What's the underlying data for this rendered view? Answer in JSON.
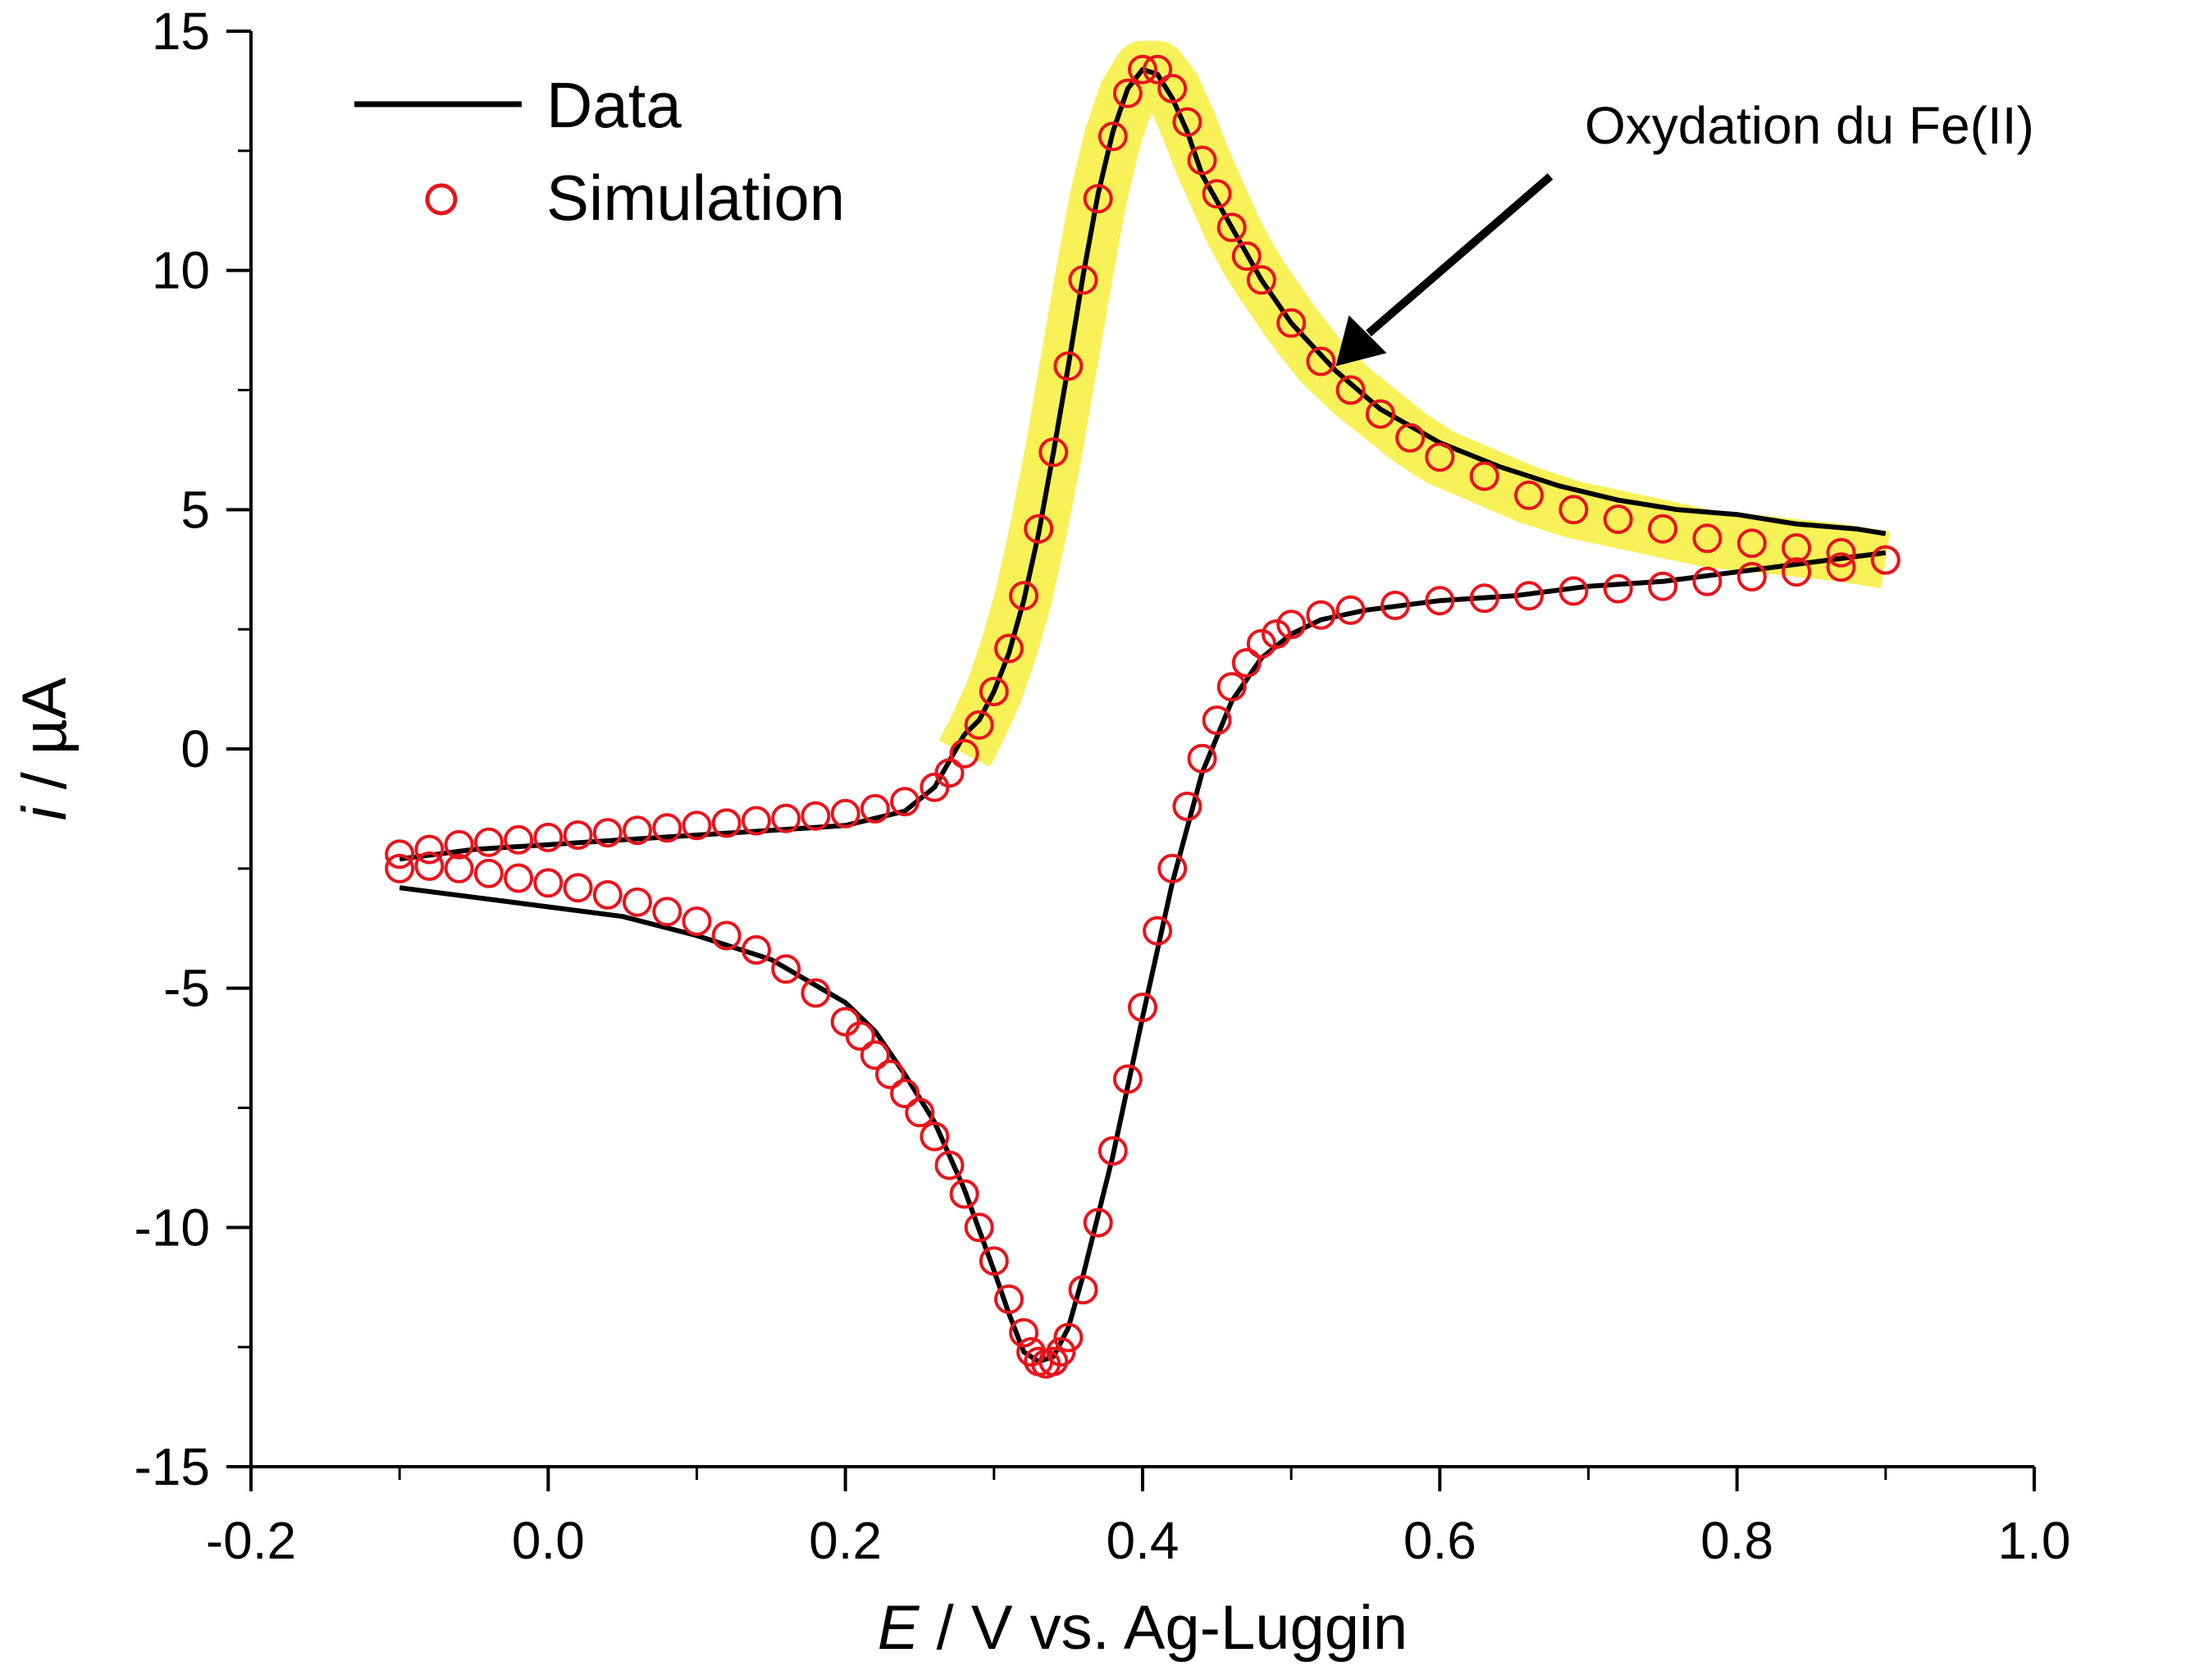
{
  "chart_data": {
    "type": "scatter",
    "title": "",
    "xlabel_italic": "E",
    "xlabel_rest": " / V vs. Ag-Luggin",
    "ylabel_italic": "i",
    "ylabel_rest": " / µA",
    "xlim": [
      -0.2,
      1.0
    ],
    "ylim": [
      -15,
      15
    ],
    "x_ticks": [
      -0.2,
      0.0,
      0.2,
      0.4,
      0.6,
      0.8,
      1.0
    ],
    "x_tick_labels": [
      "-0.2",
      "0.0",
      "0.2",
      "0.4",
      "0.6",
      "0.8",
      "1.0"
    ],
    "y_ticks": [
      -15,
      -10,
      -5,
      0,
      5,
      10,
      15
    ],
    "y_tick_labels": [
      "-15",
      "-10",
      "-5",
      "0",
      "5",
      "10",
      "15"
    ],
    "grid": false,
    "legend_position": "top-left",
    "legend": [
      {
        "label": "Data",
        "style": "line",
        "color": "#000000"
      },
      {
        "label": "Simulation",
        "style": "open-circle",
        "color": "#e8141c"
      }
    ],
    "highlight_color": "#f7ee3a",
    "annotation": {
      "text": "Oxydation du Fe(II)",
      "arrow_target": [
        0.53,
        8.0
      ]
    },
    "series": [
      {
        "name": "Data",
        "style": "line",
        "color": "#000000",
        "forward_x": [
          0.28,
          0.29,
          0.3,
          0.31,
          0.32,
          0.33,
          0.34,
          0.35,
          0.36,
          0.37,
          0.38,
          0.39,
          0.4,
          0.41,
          0.42,
          0.43,
          0.44,
          0.46,
          0.48,
          0.5,
          0.53,
          0.56,
          0.6,
          0.64,
          0.68,
          0.72,
          0.76,
          0.8,
          0.84,
          0.88,
          0.9
        ],
        "forward_y": [
          0.3,
          0.6,
          1.2,
          2.0,
          3.1,
          4.5,
          6.2,
          8.0,
          9.9,
          11.6,
          12.9,
          13.8,
          14.2,
          14.1,
          13.6,
          12.9,
          12.0,
          10.9,
          9.8,
          8.9,
          7.9,
          7.1,
          6.4,
          5.9,
          5.5,
          5.2,
          5.0,
          4.9,
          4.7,
          4.6,
          4.5
        ],
        "reverse_x": [
          0.9,
          0.85,
          0.8,
          0.75,
          0.7,
          0.65,
          0.6,
          0.55,
          0.52,
          0.5,
          0.48,
          0.46,
          0.44,
          0.42,
          0.4,
          0.38,
          0.36,
          0.35,
          0.34,
          0.33,
          0.32,
          0.31,
          0.3,
          0.28,
          0.26,
          0.24,
          0.22,
          0.2,
          0.15,
          0.1,
          0.05,
          0.0,
          -0.05,
          -0.1
        ],
        "reverse_y": [
          4.1,
          3.9,
          3.7,
          3.5,
          3.4,
          3.2,
          3.1,
          2.9,
          2.7,
          2.4,
          1.9,
          1.0,
          -0.5,
          -2.8,
          -5.6,
          -8.5,
          -11.0,
          -12.1,
          -12.7,
          -12.8,
          -12.6,
          -11.8,
          -10.9,
          -9.2,
          -7.8,
          -6.8,
          -5.9,
          -5.3,
          -4.4,
          -3.9,
          -3.5,
          -3.3,
          -3.1,
          -2.9
        ],
        "start_x": [
          -0.1,
          -0.05,
          0.0,
          0.05,
          0.1,
          0.15,
          0.2,
          0.24,
          0.26,
          0.28
        ],
        "start_y": [
          -2.3,
          -2.1,
          -2.0,
          -1.9,
          -1.8,
          -1.7,
          -1.6,
          -1.3,
          -0.8,
          0.3
        ]
      },
      {
        "name": "Simulation",
        "style": "open-circle",
        "color": "#e8141c",
        "forward_x": [
          -0.1,
          -0.08,
          -0.06,
          -0.04,
          -0.02,
          0.0,
          0.02,
          0.04,
          0.06,
          0.08,
          0.1,
          0.12,
          0.14,
          0.16,
          0.18,
          0.2,
          0.22,
          0.24,
          0.26,
          0.27,
          0.28,
          0.29,
          0.3,
          0.31,
          0.32,
          0.33,
          0.34,
          0.35,
          0.36,
          0.37,
          0.38,
          0.39,
          0.4,
          0.41,
          0.42,
          0.43,
          0.44,
          0.45,
          0.46,
          0.47,
          0.48,
          0.5,
          0.52,
          0.54,
          0.56,
          0.58,
          0.6,
          0.63,
          0.66,
          0.69,
          0.72,
          0.75,
          0.78,
          0.81,
          0.84,
          0.87,
          0.9
        ],
        "forward_y": [
          -2.2,
          -2.1,
          -2.0,
          -1.95,
          -1.9,
          -1.85,
          -1.8,
          -1.75,
          -1.7,
          -1.65,
          -1.6,
          -1.55,
          -1.5,
          -1.45,
          -1.4,
          -1.35,
          -1.25,
          -1.1,
          -0.8,
          -0.5,
          -0.1,
          0.5,
          1.2,
          2.1,
          3.2,
          4.6,
          6.2,
          8.0,
          9.8,
          11.5,
          12.8,
          13.7,
          14.2,
          14.2,
          13.8,
          13.1,
          12.3,
          11.6,
          10.9,
          10.3,
          9.8,
          8.9,
          8.1,
          7.5,
          7.0,
          6.5,
          6.1,
          5.7,
          5.3,
          5.0,
          4.8,
          4.6,
          4.4,
          4.3,
          4.2,
          4.1,
          3.95
        ],
        "reverse_x": [
          0.9,
          0.87,
          0.84,
          0.81,
          0.78,
          0.75,
          0.72,
          0.69,
          0.66,
          0.63,
          0.6,
          0.57,
          0.54,
          0.52,
          0.5,
          0.49,
          0.48,
          0.47,
          0.46,
          0.45,
          0.44,
          0.43,
          0.42,
          0.41,
          0.4,
          0.39,
          0.38,
          0.37,
          0.36,
          0.35,
          0.345,
          0.34,
          0.335,
          0.33,
          0.325,
          0.32,
          0.31,
          0.3,
          0.29,
          0.28,
          0.27,
          0.26,
          0.25,
          0.24,
          0.23,
          0.22,
          0.21,
          0.2,
          0.18,
          0.16,
          0.14,
          0.12,
          0.1,
          0.08,
          0.06,
          0.04,
          0.02,
          0.0,
          -0.02,
          -0.04,
          -0.06,
          -0.08,
          -0.1
        ],
        "reverse_y": [
          3.95,
          3.8,
          3.7,
          3.6,
          3.5,
          3.4,
          3.35,
          3.3,
          3.2,
          3.15,
          3.1,
          3.0,
          2.9,
          2.8,
          2.6,
          2.4,
          2.2,
          1.8,
          1.3,
          0.6,
          -0.2,
          -1.2,
          -2.5,
          -3.8,
          -5.4,
          -6.9,
          -8.4,
          -9.9,
          -11.3,
          -12.3,
          -12.6,
          -12.8,
          -12.85,
          -12.8,
          -12.6,
          -12.2,
          -11.5,
          -10.7,
          -10.0,
          -9.3,
          -8.7,
          -8.1,
          -7.6,
          -7.2,
          -6.8,
          -6.4,
          -6.0,
          -5.7,
          -5.1,
          -4.6,
          -4.2,
          -3.9,
          -3.6,
          -3.4,
          -3.2,
          -3.05,
          -2.9,
          -2.8,
          -2.7,
          -2.6,
          -2.5,
          -2.45,
          -2.5
        ]
      }
    ]
  }
}
